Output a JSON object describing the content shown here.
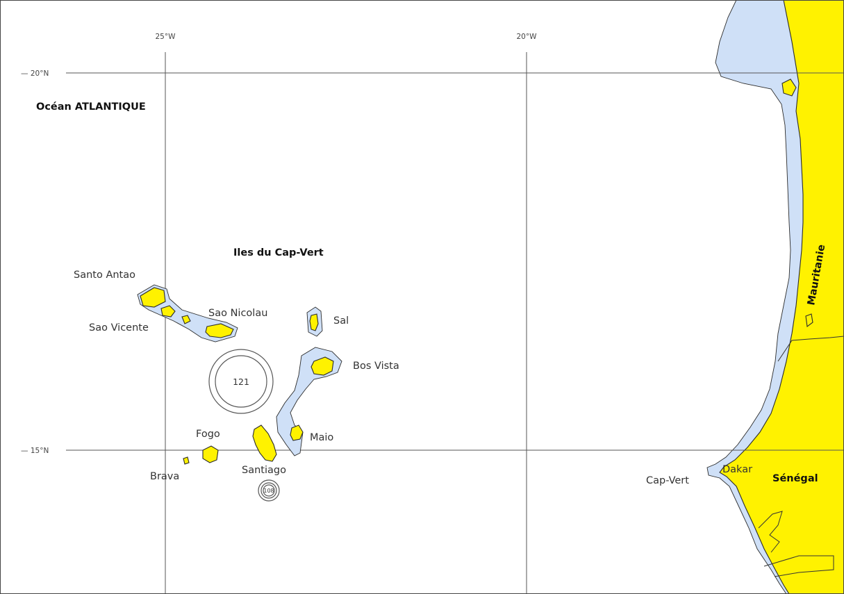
{
  "colors": {
    "land": "#fff200",
    "shelf": "#cfe0f7",
    "ocean": "#ffffff",
    "lines": "#333333"
  },
  "grid": {
    "lon_west": "25°W",
    "lon_east": "20°W",
    "lat_north": "— 20°N",
    "lat_south": "— 15°N"
  },
  "labels": {
    "ocean": "Océan ATLANTIQUE",
    "archipelago": "Iles du Cap-Vert",
    "santo_antao": "Santo Antao",
    "sao_vicente": "Sao Vicente",
    "sao_nicolau": "Sao Nicolau",
    "sal": "Sal",
    "boa_vista": "Bos Vista",
    "maio": "Maio",
    "fogo": "Fogo",
    "brava": "Brava",
    "santiago": "Santiago",
    "cap_vert": "Cap-Vert",
    "dakar": "Dakar",
    "senegal": "Sénégal",
    "mauritanie": "Mauritanie"
  },
  "depth_markers": {
    "large": "121",
    "small": "108"
  }
}
